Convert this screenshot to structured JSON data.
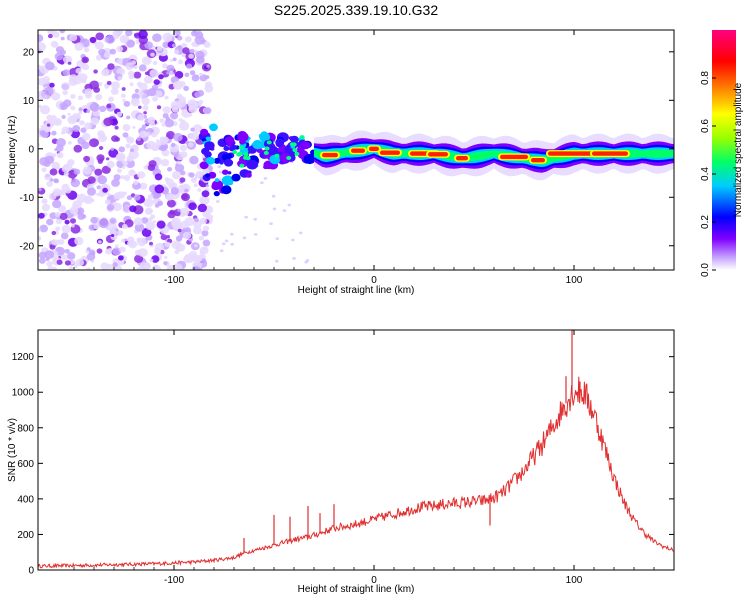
{
  "figure_title": "S225.2025.339.19.10.G32",
  "chart_data": [
    {
      "type": "heatmap",
      "title": "",
      "xlabel": "Height of straight line (km)",
      "ylabel": "Frequency (Hz)",
      "xlim": [
        -168,
        150
      ],
      "ylim": [
        -25,
        24.5
      ],
      "x_ticks": [
        -100,
        0,
        100
      ],
      "y_ticks": [
        -20,
        -10,
        0,
        10,
        20
      ],
      "x_tick_labels": [
        "-100",
        "0",
        "100"
      ],
      "y_tick_labels": [
        "-20",
        "-10",
        "0",
        "10",
        "20"
      ],
      "colorbar": {
        "label": "Normalized spectral amplitude",
        "range": [
          0,
          1
        ],
        "ticks": [
          0.0,
          0.2,
          0.4,
          0.6,
          0.8
        ],
        "tick_labels": [
          "0.0",
          "0.2",
          "0.4",
          "0.6",
          "0.8"
        ],
        "colormap": [
          "#ffffff",
          "#c8a8ff",
          "#7f00ff",
          "#0000ff",
          "#00ccff",
          "#00ff66",
          "#99ff00",
          "#ffff00",
          "#ff8800",
          "#ff0000",
          "#ff0080"
        ]
      },
      "ridge": {
        "noise_region_x": [
          -168,
          -82
        ],
        "transition_x": [
          -85,
          -30
        ],
        "ridge_x": [
          -30,
          150
        ],
        "ridge_frequency_hz": [
          {
            "x": -80,
            "y": -5
          },
          {
            "x": -70,
            "y": -2
          },
          {
            "x": -60,
            "y": -1
          },
          {
            "x": -45,
            "y": 0.5
          },
          {
            "x": -35,
            "y": 0
          },
          {
            "x": -25,
            "y": -1.5
          },
          {
            "x": -10,
            "y": -0.5
          },
          {
            "x": 0,
            "y": 0
          },
          {
            "x": 10,
            "y": -1
          },
          {
            "x": 30,
            "y": -1
          },
          {
            "x": 45,
            "y": -2
          },
          {
            "x": 60,
            "y": -1
          },
          {
            "x": 75,
            "y": -2
          },
          {
            "x": 85,
            "y": -2.5
          },
          {
            "x": 100,
            "y": -1
          },
          {
            "x": 130,
            "y": -1
          },
          {
            "x": 150,
            "y": -1
          }
        ]
      },
      "colors": {
        "plot_border": "#000000"
      }
    },
    {
      "type": "line",
      "title": "",
      "xlabel": "Height of straight line (km)",
      "ylabel": "SNR (10 * v/v)",
      "xlim": [
        -168,
        150
      ],
      "ylim": [
        0,
        1350
      ],
      "x_ticks": [
        -100,
        0,
        100
      ],
      "y_ticks": [
        0,
        200,
        400,
        600,
        800,
        1000,
        1200
      ],
      "x_tick_labels": [
        "-100",
        "0",
        "100"
      ],
      "y_tick_labels": [
        "0",
        "200",
        "400",
        "600",
        "800",
        "1000",
        "1200"
      ],
      "series": [
        {
          "name": "SNR",
          "color": "#e03030",
          "x": [
            -168,
            -150,
            -130,
            -110,
            -100,
            -90,
            -80,
            -70,
            -65,
            -60,
            -55,
            -50,
            -45,
            -40,
            -35,
            -30,
            -25,
            -20,
            -15,
            -10,
            -5,
            0,
            5,
            10,
            15,
            20,
            25,
            30,
            35,
            40,
            45,
            50,
            55,
            60,
            65,
            70,
            75,
            80,
            85,
            90,
            95,
            100,
            105,
            110,
            115,
            120,
            125,
            130,
            135,
            140,
            145,
            150
          ],
          "y": [
            22,
            25,
            30,
            35,
            40,
            45,
            55,
            70,
            95,
            110,
            125,
            140,
            155,
            170,
            180,
            195,
            215,
            235,
            245,
            255,
            270,
            285,
            300,
            315,
            330,
            345,
            355,
            360,
            370,
            375,
            380,
            385,
            390,
            405,
            440,
            500,
            560,
            640,
            720,
            820,
            920,
            1010,
            1000,
            880,
            700,
            520,
            380,
            280,
            210,
            160,
            130,
            110
          ]
        }
      ],
      "spikes": [
        {
          "x": -65,
          "y": 180
        },
        {
          "x": -50,
          "y": 310
        },
        {
          "x": -42,
          "y": 300
        },
        {
          "x": -33,
          "y": 360
        },
        {
          "x": -27,
          "y": 320
        },
        {
          "x": -20,
          "y": 370
        },
        {
          "x": 58,
          "y": 250
        },
        {
          "x": 99,
          "y": 1350
        },
        {
          "x": 96,
          "y": 1090
        },
        {
          "x": 103,
          "y": 1060
        }
      ],
      "colors": {
        "plot_border": "#000000"
      }
    }
  ]
}
